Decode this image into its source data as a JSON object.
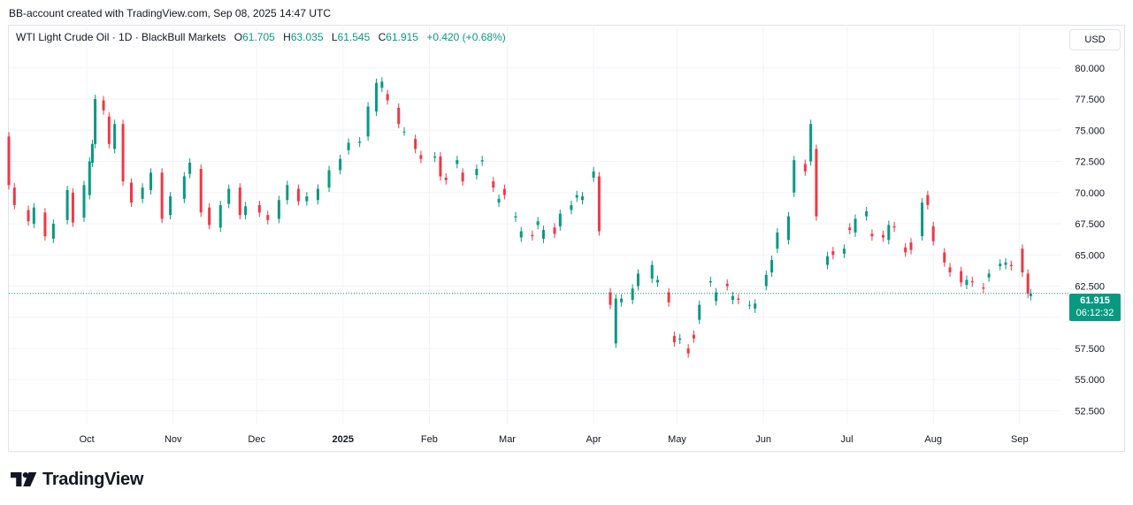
{
  "snapshot_text": "BB-account created with TradingView.com, Sep 08, 2025 14:47 UTC",
  "legend": {
    "symbol": "WTI Light Crude Oil · 1D · BlackBull Markets",
    "open_label": "O",
    "open": "61.705",
    "high_label": "H",
    "high": "63.035",
    "low_label": "L",
    "low": "61.545",
    "close_label": "C",
    "close": "61.915",
    "change": "+0.420 (+0.68%)"
  },
  "currency_button": "USD",
  "price_label": {
    "price": "61.915",
    "countdown": "06:12:32"
  },
  "brand": "TradingView",
  "colors": {
    "up": "#089981",
    "down": "#f23645",
    "grid": "#f0f3fa",
    "text": "#131722"
  },
  "icons": {
    "logo": "tradingview-logo-icon"
  },
  "chart_data": {
    "type": "candlestick",
    "y_ticks": [
      "80.000",
      "77.500",
      "75.000",
      "72.500",
      "70.000",
      "67.500",
      "65.000",
      "62.500",
      "60.000",
      "57.500",
      "55.000",
      "52.500"
    ],
    "y_tick_values": [
      80,
      77.5,
      75,
      72.5,
      70,
      67.5,
      65,
      62.5,
      60,
      57.5,
      55,
      52.5
    ],
    "ylim": [
      51.4,
      81.9
    ],
    "x_ticks": [
      {
        "label": "Oct",
        "date": "2024-10-01",
        "bold": false
      },
      {
        "label": "Nov",
        "date": "2024-11-01",
        "bold": false
      },
      {
        "label": "Dec",
        "date": "2024-12-01",
        "bold": false
      },
      {
        "label": "2025",
        "date": "2025-01-01",
        "bold": true
      },
      {
        "label": "Feb",
        "date": "2025-02-01",
        "bold": false
      },
      {
        "label": "Mar",
        "date": "2025-03-01",
        "bold": false
      },
      {
        "label": "Apr",
        "date": "2025-04-01",
        "bold": false
      },
      {
        "label": "May",
        "date": "2025-05-01",
        "bold": false
      },
      {
        "label": "Jun",
        "date": "2025-06-01",
        "bold": false
      },
      {
        "label": "Jul",
        "date": "2025-07-01",
        "bold": false
      },
      {
        "label": "Aug",
        "date": "2025-08-01",
        "bold": false
      },
      {
        "label": "Sep",
        "date": "2025-09-01",
        "bold": false
      }
    ],
    "xlim": [
      "2024-09-03",
      "2025-09-16"
    ],
    "last_price": 61.915,
    "series": [
      {
        "name": "WTI Light Crude Oil",
        "points": [
          [
            "2024-09-03",
            74.5,
            70.6
          ],
          [
            "2024-09-05",
            70.4,
            69.0
          ],
          [
            "2024-09-10",
            68.6,
            67.7
          ],
          [
            "2024-09-12",
            67.5,
            68.8
          ],
          [
            "2024-09-16",
            68.4,
            66.5
          ],
          [
            "2024-09-19",
            66.3,
            67.5
          ],
          [
            "2024-09-24",
            67.8,
            70.2
          ],
          [
            "2024-09-26",
            70.0,
            67.6
          ],
          [
            "2024-09-30",
            68.0,
            70.6
          ],
          [
            "2024-10-02",
            69.8,
            72.5
          ],
          [
            "2024-10-03",
            72.4,
            73.9
          ],
          [
            "2024-10-04",
            73.9,
            77.5
          ],
          [
            "2024-10-07",
            77.4,
            76.6
          ],
          [
            "2024-10-09",
            76.1,
            73.9
          ],
          [
            "2024-10-11",
            73.5,
            75.5
          ],
          [
            "2024-10-14",
            75.5,
            70.9
          ],
          [
            "2024-10-17",
            70.8,
            69.2
          ],
          [
            "2024-10-21",
            69.5,
            70.4
          ],
          [
            "2024-10-24",
            70.2,
            71.6
          ],
          [
            "2024-10-28",
            71.6,
            67.9
          ],
          [
            "2024-10-31",
            68.2,
            69.7
          ],
          [
            "2024-11-05",
            69.5,
            71.3
          ],
          [
            "2024-11-07",
            71.5,
            72.4
          ],
          [
            "2024-11-11",
            71.9,
            68.4
          ],
          [
            "2024-11-14",
            68.8,
            67.4
          ],
          [
            "2024-11-18",
            67.2,
            69.0
          ],
          [
            "2024-11-21",
            69.1,
            70.3
          ],
          [
            "2024-11-25",
            70.4,
            68.2
          ],
          [
            "2024-11-27",
            68.2,
            68.9
          ],
          [
            "2024-12-02",
            69.0,
            68.4
          ],
          [
            "2024-12-05",
            68.2,
            67.8
          ],
          [
            "2024-12-09",
            67.9,
            69.4
          ],
          [
            "2024-12-12",
            69.4,
            70.6
          ],
          [
            "2024-12-16",
            70.3,
            69.3
          ],
          [
            "2024-12-19",
            69.3,
            69.7
          ],
          [
            "2024-12-23",
            69.4,
            70.3
          ],
          [
            "2024-12-27",
            70.4,
            71.8
          ],
          [
            "2024-12-31",
            71.8,
            72.7
          ],
          [
            "2025-01-03",
            73.4,
            74.0
          ],
          [
            "2025-01-07",
            74.0,
            74.1
          ],
          [
            "2025-01-10",
            74.5,
            76.9
          ],
          [
            "2025-01-13",
            76.5,
            78.8
          ],
          [
            "2025-01-15",
            78.4,
            78.9
          ],
          [
            "2025-01-17",
            77.9,
            77.4
          ],
          [
            "2025-01-21",
            76.8,
            75.5
          ],
          [
            "2025-01-23",
            74.9,
            74.9
          ],
          [
            "2025-01-27",
            74.3,
            73.5
          ],
          [
            "2025-01-29",
            73.0,
            72.7
          ],
          [
            "2025-02-03",
            72.8,
            72.9
          ],
          [
            "2025-02-05",
            72.9,
            71.3
          ],
          [
            "2025-02-07",
            71.2,
            71.0
          ],
          [
            "2025-02-11",
            72.3,
            72.6
          ],
          [
            "2025-02-13",
            71.6,
            70.9
          ],
          [
            "2025-02-18",
            71.4,
            71.9
          ],
          [
            "2025-02-20",
            72.5,
            72.6
          ],
          [
            "2025-02-24",
            70.9,
            70.4
          ],
          [
            "2025-02-26",
            69.2,
            69.5
          ],
          [
            "2025-02-28",
            70.3,
            69.8
          ],
          [
            "2025-03-04",
            68.0,
            68.1
          ],
          [
            "2025-03-06",
            66.4,
            66.9
          ],
          [
            "2025-03-10",
            66.6,
            66.5
          ],
          [
            "2025-03-12",
            67.4,
            67.7
          ],
          [
            "2025-03-14",
            66.3,
            67.0
          ],
          [
            "2025-03-18",
            67.2,
            66.7
          ],
          [
            "2025-03-20",
            67.3,
            68.3
          ],
          [
            "2025-03-24",
            68.6,
            69.0
          ],
          [
            "2025-03-26",
            69.6,
            69.8
          ],
          [
            "2025-03-28",
            69.4,
            69.7
          ],
          [
            "2025-04-01",
            71.2,
            71.7
          ],
          [
            "2025-04-03",
            71.3,
            66.9
          ],
          [
            "2025-04-07",
            62.0,
            61.0
          ],
          [
            "2025-04-09",
            57.9,
            61.5
          ],
          [
            "2025-04-11",
            61.2,
            61.5
          ],
          [
            "2025-04-15",
            61.4,
            62.3
          ],
          [
            "2025-04-17",
            62.5,
            63.5
          ],
          [
            "2025-04-22",
            63.1,
            64.2
          ],
          [
            "2025-04-24",
            62.8,
            63.0
          ],
          [
            "2025-04-28",
            62.0,
            61.2
          ],
          [
            "2025-04-30",
            58.5,
            58.0
          ],
          [
            "2025-05-02",
            58.2,
            58.3
          ],
          [
            "2025-05-05",
            57.5,
            57.1
          ],
          [
            "2025-05-07",
            58.6,
            58.3
          ],
          [
            "2025-05-09",
            59.8,
            61.0
          ],
          [
            "2025-05-13",
            62.8,
            62.9
          ],
          [
            "2025-05-15",
            61.3,
            62.0
          ],
          [
            "2025-05-19",
            62.7,
            62.5
          ],
          [
            "2025-05-21",
            61.4,
            61.7
          ],
          [
            "2025-05-23",
            61.5,
            61.4
          ],
          [
            "2025-05-27",
            61.0,
            61.0
          ],
          [
            "2025-05-29",
            60.7,
            61.1
          ],
          [
            "2025-06-02",
            62.5,
            63.4
          ],
          [
            "2025-06-04",
            63.6,
            64.6
          ],
          [
            "2025-06-06",
            65.5,
            66.8
          ],
          [
            "2025-06-10",
            66.2,
            68.1
          ],
          [
            "2025-06-12",
            70.0,
            72.6
          ],
          [
            "2025-06-16",
            72.3,
            71.7
          ],
          [
            "2025-06-18",
            72.5,
            75.5
          ],
          [
            "2025-06-20",
            73.5,
            68.1
          ],
          [
            "2025-06-24",
            64.2,
            64.9
          ],
          [
            "2025-06-26",
            65.3,
            65.0
          ],
          [
            "2025-06-30",
            65.1,
            65.5
          ],
          [
            "2025-07-02",
            67.2,
            67.0
          ],
          [
            "2025-07-04",
            66.8,
            67.9
          ],
          [
            "2025-07-08",
            68.1,
            68.5
          ],
          [
            "2025-07-10",
            66.7,
            66.5
          ],
          [
            "2025-07-14",
            66.6,
            66.4
          ],
          [
            "2025-07-16",
            66.2,
            67.4
          ],
          [
            "2025-07-18",
            67.3,
            67.2
          ],
          [
            "2025-07-22",
            65.6,
            65.2
          ],
          [
            "2025-07-24",
            66.0,
            65.4
          ],
          [
            "2025-07-28",
            66.5,
            69.2
          ],
          [
            "2025-07-30",
            69.8,
            69.0
          ],
          [
            "2025-08-01",
            67.3,
            66.1
          ],
          [
            "2025-08-05",
            65.2,
            64.4
          ],
          [
            "2025-08-07",
            64.0,
            63.6
          ],
          [
            "2025-08-11",
            63.7,
            62.8
          ],
          [
            "2025-08-13",
            62.6,
            63.0
          ],
          [
            "2025-08-15",
            62.9,
            62.8
          ],
          [
            "2025-08-19",
            62.4,
            62.3
          ],
          [
            "2025-08-21",
            63.2,
            63.5
          ],
          [
            "2025-08-25",
            64.1,
            64.3
          ],
          [
            "2025-08-27",
            64.2,
            64.4
          ],
          [
            "2025-08-29",
            64.2,
            64.1
          ],
          [
            "2025-09-02",
            65.5,
            63.6
          ],
          [
            "2025-09-04",
            63.5,
            61.9
          ],
          [
            "2025-09-05",
            61.7,
            61.9
          ]
        ]
      }
    ]
  }
}
